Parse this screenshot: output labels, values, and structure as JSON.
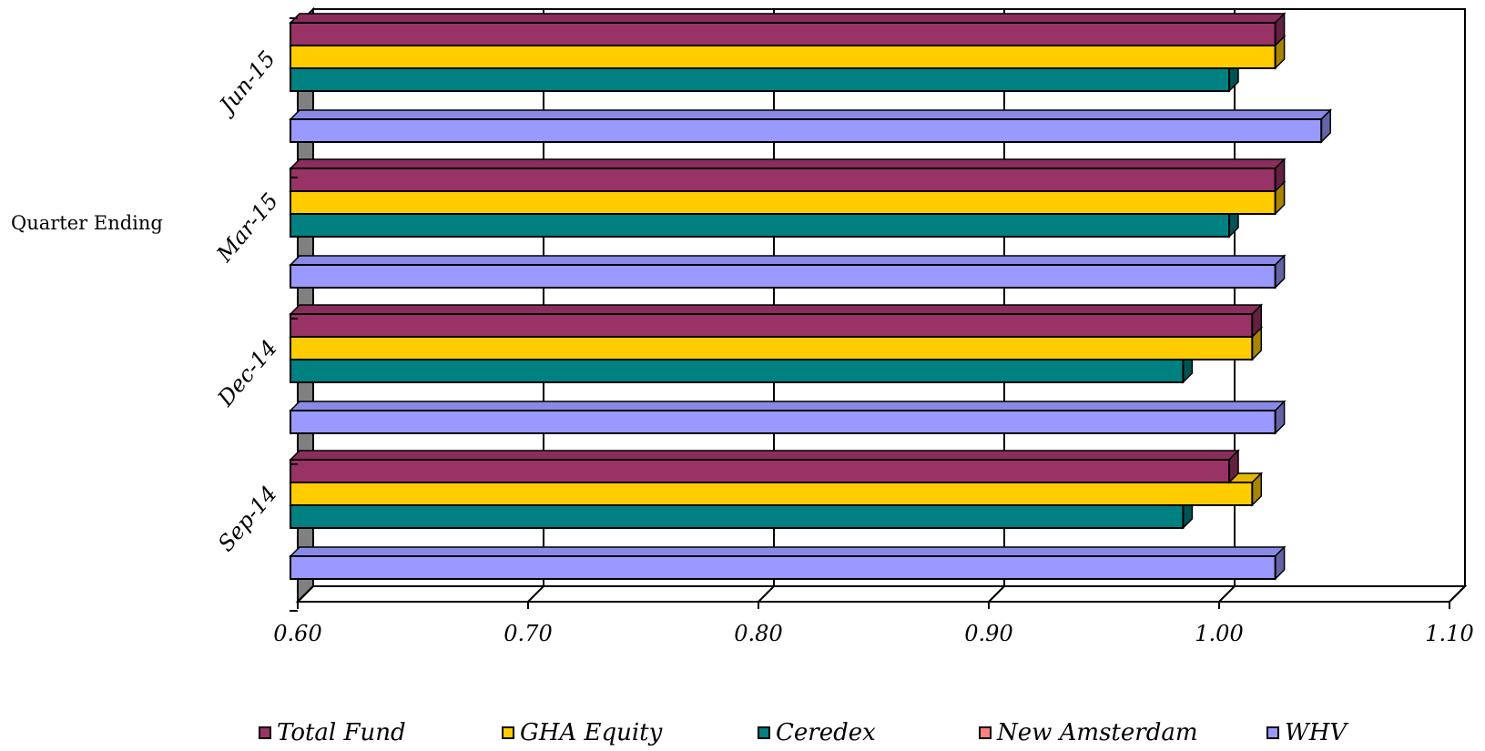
{
  "chart_data": {
    "type": "bar",
    "orientation": "horizontal",
    "ylabel": "Quarter Ending",
    "xlim": [
      0.6,
      1.1
    ],
    "x_ticks": [
      "0.60",
      "0.70",
      "0.80",
      "0.90",
      "1.00",
      "1.10"
    ],
    "x_tick_values": [
      0.6,
      0.7,
      0.8,
      0.9,
      1.0,
      1.1
    ],
    "categories": [
      "Sep-14",
      "Dec-14",
      "Mar-15",
      "Jun-15"
    ],
    "series": [
      {
        "name": "Total Fund",
        "color": "#993366",
        "values": [
          1.0,
          1.01,
          1.02,
          1.02
        ]
      },
      {
        "name": "GHA Equity",
        "color": "#FFCC00",
        "values": [
          1.01,
          1.01,
          1.02,
          1.02
        ]
      },
      {
        "name": "Ceredex",
        "color": "#008080",
        "values": [
          0.98,
          0.98,
          1.0,
          1.0
        ]
      },
      {
        "name": "New Amsterdam",
        "color": "#FF8080",
        "values": [
          null,
          null,
          null,
          null
        ]
      },
      {
        "name": "WHV",
        "color": "#9999FF",
        "values": [
          1.02,
          1.02,
          1.02,
          1.04
        ]
      }
    ],
    "grid": "vertical",
    "legend_position": "bottom"
  }
}
